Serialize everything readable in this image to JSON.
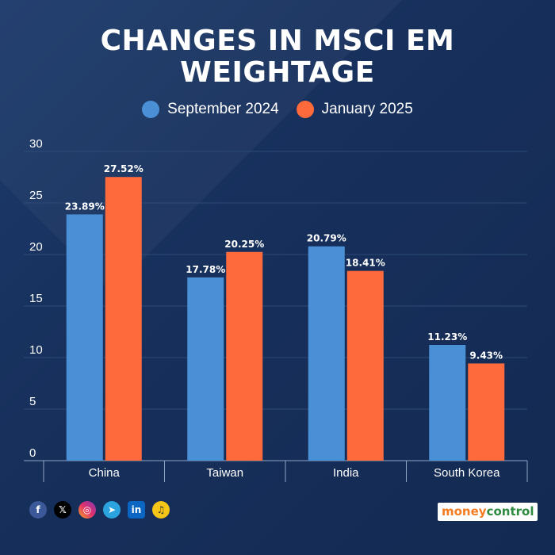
{
  "chart_data": {
    "type": "bar",
    "title": "CHANGES IN MSCI EM WEIGHTAGE",
    "categories": [
      "China",
      "Taiwan",
      "India",
      "South Korea"
    ],
    "series": [
      {
        "name": "September 2024",
        "values": [
          23.89,
          17.78,
          20.79,
          11.23
        ],
        "labels": [
          "23.89%",
          "17.78%",
          "20.79%",
          "11.23%"
        ],
        "color": "#4a90d6"
      },
      {
        "name": "January 2025",
        "values": [
          27.52,
          20.25,
          18.41,
          9.43
        ],
        "labels": [
          "27.52%",
          "20.25%",
          "18.41%",
          "9.43%"
        ],
        "color": "#ff6a3d"
      }
    ],
    "ylim": [
      0,
      30
    ],
    "yticks": [
      "0",
      "5",
      "10",
      "15",
      "20",
      "25",
      "30"
    ],
    "grid": true,
    "legend": "top-center",
    "xlabel": "",
    "ylabel": ""
  },
  "footer": {
    "social_icons": [
      "facebook-icon",
      "x-icon",
      "instagram-icon",
      "telegram-icon",
      "linkedin-icon",
      "snapchat-icon"
    ],
    "brand_money": "money",
    "brand_control": "control"
  },
  "colors": {
    "background": "#17305c",
    "grid": "#2e4a78",
    "september": "#4a90d6",
    "january": "#ff6a3d"
  }
}
